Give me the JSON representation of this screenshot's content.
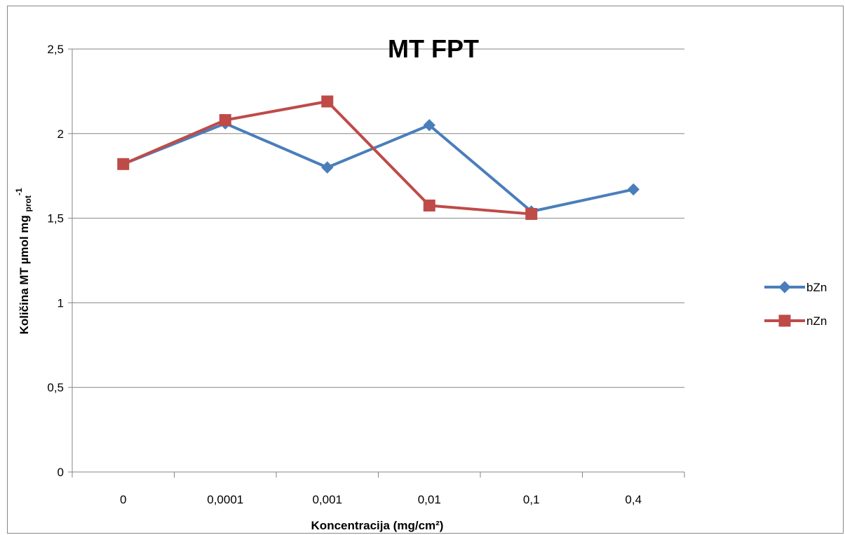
{
  "chart_data": {
    "type": "line",
    "title": "MT FPT",
    "xlabel": "Koncentracija (mg/cm²)",
    "ylabel": {
      "main": "Količina MT µmol mg ",
      "subscript": "prot",
      "superscript": "-1"
    },
    "categories": [
      "0",
      "0,0001",
      "0,001",
      "0,01",
      "0,1",
      "0,4"
    ],
    "ylim": [
      0,
      2.5
    ],
    "yticks": [
      {
        "value": 0,
        "label": "0"
      },
      {
        "value": 0.5,
        "label": "0,5"
      },
      {
        "value": 1,
        "label": "1"
      },
      {
        "value": 1.5,
        "label": "1,5"
      },
      {
        "value": 2,
        "label": "2"
      },
      {
        "value": 2.5,
        "label": "2,5"
      }
    ],
    "grid": true,
    "legend_position": "right",
    "series": [
      {
        "name": "bZn",
        "color": "#4a7ebb",
        "marker": "diamond",
        "values": [
          1.82,
          2.06,
          1.8,
          2.05,
          1.54,
          1.67
        ]
      },
      {
        "name": "nZn",
        "color": "#be4b48",
        "marker": "square",
        "values": [
          1.82,
          2.08,
          2.19,
          1.575,
          1.525,
          null
        ]
      }
    ]
  }
}
